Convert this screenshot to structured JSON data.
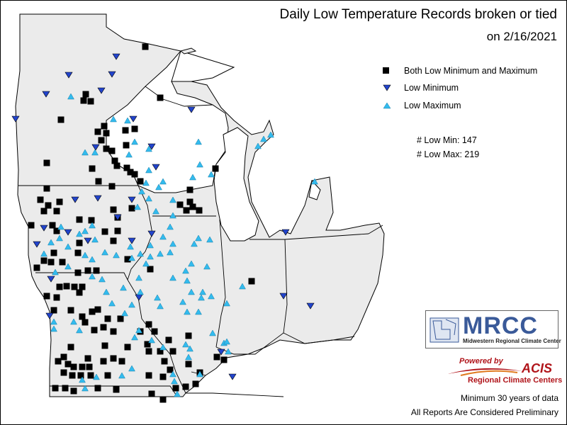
{
  "title": {
    "line1": "Daily Low Temperature Records broken or tied",
    "line2": "on 2/16/2021"
  },
  "legend": {
    "items": [
      {
        "label": "Both Low Minimum and Maximum",
        "symbol": "black-square-icon"
      },
      {
        "label": "Low Minimum",
        "symbol": "blue-down-triangle-icon"
      },
      {
        "label": "Low Maximum",
        "symbol": "cyan-up-triangle-icon"
      }
    ]
  },
  "counts": {
    "low_min": "# Low Min: 147",
    "low_max": "# Low Max: 219"
  },
  "logos": {
    "mrcc": "MRCC",
    "mrcc_sub": "Midwestern Regional Climate Center",
    "acis_powered": "Powered by",
    "acis": "ACIS",
    "acis_sub": "Regional Climate Centers"
  },
  "footer": {
    "line1": "Minimum 30 years of data",
    "line2": "All Reports Are Considered Preliminary"
  },
  "colors": {
    "land": "#ebebeb",
    "outside": "#ffffff",
    "border": "#000000",
    "both_marker": "#000000",
    "low_min_marker": "#2244cc",
    "low_max_marker": "#33bbee"
  }
}
